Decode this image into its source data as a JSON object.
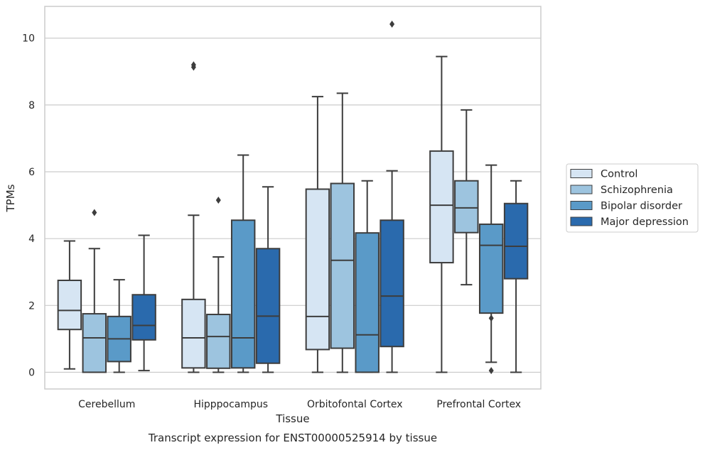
{
  "caption": "Transcript expression for ENST00000525914 by tissue",
  "chart_data": {
    "type": "box",
    "xlabel": "Tissue",
    "ylabel": "TPMs",
    "ylim": [
      -0.5,
      10.95
    ],
    "yticks": [
      0,
      2,
      4,
      6,
      8,
      10
    ],
    "grid": true,
    "legend_position": "right",
    "categories": [
      "Cerebellum",
      "Hipppocampus",
      "Orbitofontal Cortex",
      "Prefrontal Cortex"
    ],
    "series": [
      {
        "name": "Control",
        "color": "#d6e5f3",
        "boxes": [
          {
            "whisker_low": 0.1,
            "q1": 1.28,
            "median": 1.85,
            "q3": 2.75,
            "whisker_high": 3.93,
            "outliers": []
          },
          {
            "whisker_low": 0.0,
            "q1": 0.13,
            "median": 1.03,
            "q3": 2.18,
            "whisker_high": 4.7,
            "outliers": [
              9.13,
              9.2
            ]
          },
          {
            "whisker_low": 0.0,
            "q1": 0.68,
            "median": 1.67,
            "q3": 5.48,
            "whisker_high": 8.25,
            "outliers": []
          },
          {
            "whisker_low": 0.0,
            "q1": 3.28,
            "median": 5.0,
            "q3": 6.62,
            "whisker_high": 9.45,
            "outliers": []
          }
        ]
      },
      {
        "name": "Schizophrenia",
        "color": "#9dc4df",
        "boxes": [
          {
            "whisker_low": 0.0,
            "q1": 0.0,
            "median": 1.03,
            "q3": 1.75,
            "whisker_high": 3.7,
            "outliers": [
              4.78
            ]
          },
          {
            "whisker_low": 0.0,
            "q1": 0.12,
            "median": 1.07,
            "q3": 1.73,
            "whisker_high": 3.45,
            "outliers": [
              5.15
            ]
          },
          {
            "whisker_low": 0.0,
            "q1": 0.72,
            "median": 3.35,
            "q3": 5.65,
            "whisker_high": 8.35,
            "outliers": []
          },
          {
            "whisker_low": 2.62,
            "q1": 4.18,
            "median": 4.92,
            "q3": 5.73,
            "whisker_high": 7.85,
            "outliers": []
          }
        ]
      },
      {
        "name": "Bipolar disorder",
        "color": "#5a9ac8",
        "boxes": [
          {
            "whisker_low": 0.0,
            "q1": 0.32,
            "median": 1.0,
            "q3": 1.67,
            "whisker_high": 2.77,
            "outliers": []
          },
          {
            "whisker_low": 0.0,
            "q1": 0.13,
            "median": 1.03,
            "q3": 4.55,
            "whisker_high": 6.5,
            "outliers": []
          },
          {
            "whisker_low": 0.0,
            "q1": 0.0,
            "median": 1.12,
            "q3": 4.17,
            "whisker_high": 5.73,
            "outliers": []
          },
          {
            "whisker_low": 0.3,
            "q1": 1.77,
            "median": 3.8,
            "q3": 4.43,
            "whisker_high": 6.2,
            "outliers": [
              1.62,
              0.05
            ]
          }
        ]
      },
      {
        "name": "Major depression",
        "color": "#2a6aad",
        "boxes": [
          {
            "whisker_low": 0.05,
            "q1": 0.97,
            "median": 1.4,
            "q3": 2.32,
            "whisker_high": 4.1,
            "outliers": []
          },
          {
            "whisker_low": 0.0,
            "q1": 0.27,
            "median": 1.68,
            "q3": 3.7,
            "whisker_high": 5.55,
            "outliers": []
          },
          {
            "whisker_low": 0.0,
            "q1": 0.77,
            "median": 2.28,
            "q3": 4.55,
            "whisker_high": 6.03,
            "outliers": [
              10.42
            ]
          },
          {
            "whisker_low": 0.0,
            "q1": 2.8,
            "median": 3.77,
            "q3": 5.05,
            "whisker_high": 5.73,
            "outliers": []
          }
        ]
      }
    ]
  }
}
